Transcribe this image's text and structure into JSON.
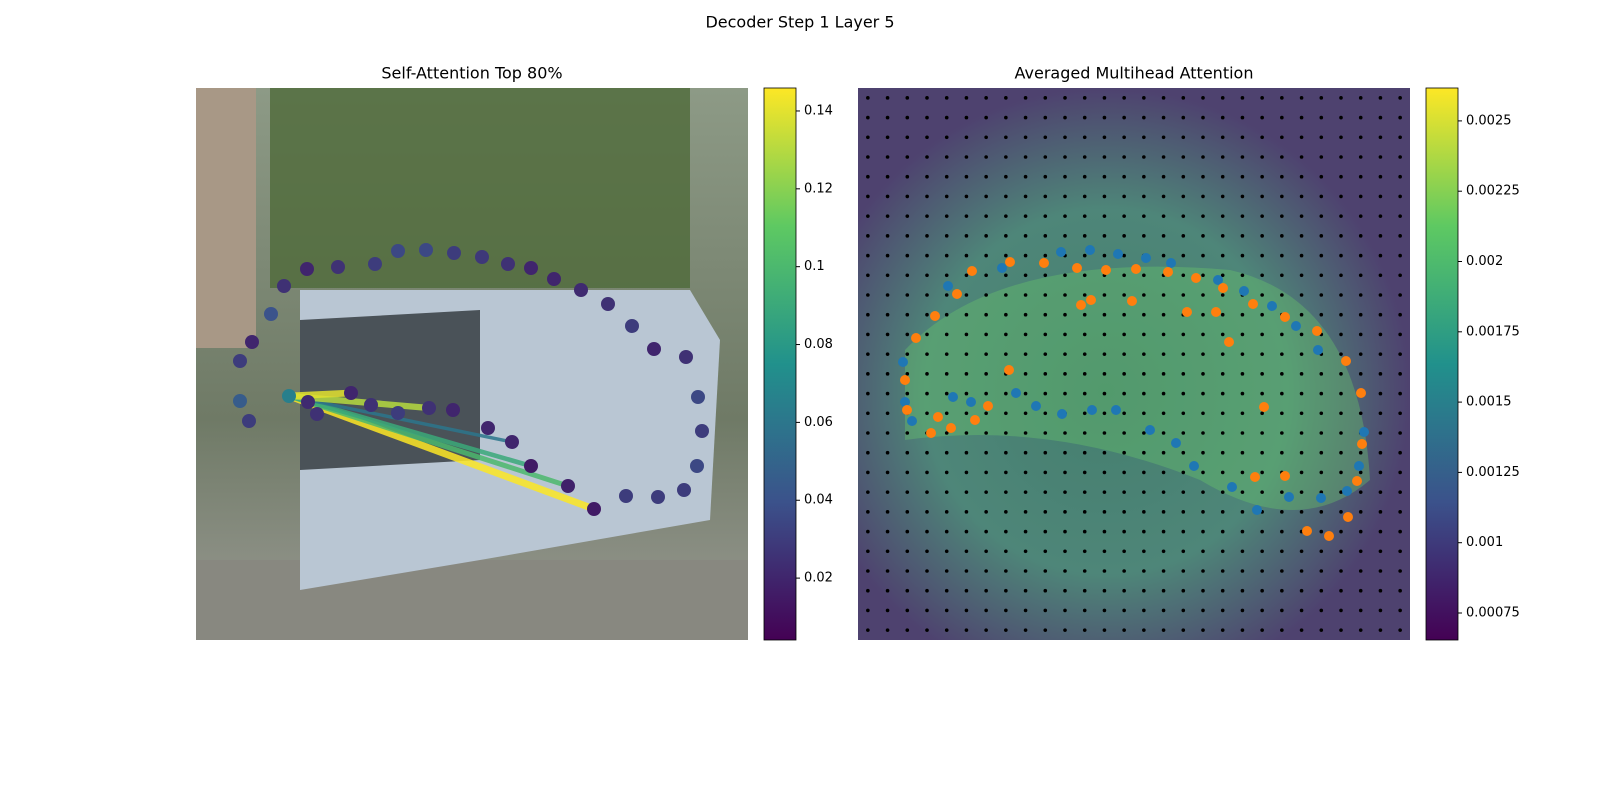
{
  "title": "Decoder Step 1 Layer 5",
  "chart_data": [
    {
      "type": "scatter",
      "title": "Self-Attention Top 80%",
      "colormap": "viridis",
      "xlim": [
        0,
        552
      ],
      "ylim": [
        552,
        0
      ],
      "x": [
        44,
        53,
        44,
        56,
        75,
        88,
        111,
        142,
        179,
        202,
        230,
        258,
        286,
        312,
        335,
        358,
        385,
        412,
        436,
        458,
        490,
        502,
        506,
        501,
        488,
        462,
        430,
        398,
        372,
        335,
        316,
        292,
        257,
        233,
        202,
        175,
        155,
        121,
        112,
        93
      ],
      "y": [
        313,
        333,
        273,
        254,
        226,
        198,
        181,
        179,
        176,
        163,
        162,
        165,
        169,
        176,
        180,
        191,
        202,
        216,
        238,
        261,
        269,
        309,
        343,
        378,
        402,
        409,
        408,
        421,
        398,
        378,
        354,
        340,
        322,
        320,
        325,
        317,
        305,
        326,
        314,
        308
      ],
      "values": [
        0.045,
        0.03,
        0.03,
        0.02,
        0.04,
        0.025,
        0.02,
        0.025,
        0.03,
        0.035,
        0.035,
        0.03,
        0.028,
        0.025,
        0.02,
        0.02,
        0.022,
        0.025,
        0.03,
        0.02,
        0.025,
        0.035,
        0.03,
        0.035,
        0.03,
        0.03,
        0.03,
        0.015,
        0.018,
        0.015,
        0.02,
        0.02,
        0.02,
        0.025,
        0.03,
        0.025,
        0.02,
        0.025,
        0.022,
        0.065
      ],
      "lines": {
        "from": 39,
        "to": [
          27,
          28,
          29,
          30,
          33,
          36
        ],
        "values": [
          0.146,
          0.1,
          0.09,
          0.06,
          0.13,
          0.14
        ]
      },
      "clim": [
        0.0041,
        0.1459
      ],
      "cticks": [
        0.02,
        0.04,
        0.06,
        0.08,
        0.1,
        0.12,
        0.14
      ]
    },
    {
      "type": "scatter",
      "title": "Averaged Multihead Attention",
      "colormap": "viridis",
      "xlim": [
        0,
        552
      ],
      "ylim": [
        552,
        0
      ],
      "series": [
        {
          "color": "#1f77b4",
          "x": [
            45,
            54,
            90,
            95,
            113,
            144,
            158,
            178,
            204,
            203,
            232,
            234,
            258,
            260,
            288,
            292,
            313,
            318,
            336,
            360,
            374,
            386,
            399,
            414,
            431,
            438,
            460,
            463,
            489,
            501,
            506,
            47
          ],
          "y": [
            274,
            333,
            198,
            309,
            314,
            180,
            305,
            318,
            326,
            164,
            162,
            322,
            322,
            166,
            170,
            342,
            175,
            355,
            378,
            192,
            399,
            203,
            422,
            218,
            409,
            238,
            262,
            410,
            403,
            378,
            344,
            314
          ]
        },
        {
          "color": "#ff7f0e",
          "x": [
            47,
            49,
            58,
            77,
            73,
            80,
            93,
            99,
            114,
            117,
            130,
            151,
            152,
            186,
            219,
            223,
            233,
            248,
            274,
            278,
            310,
            329,
            338,
            358,
            365,
            371,
            395,
            406,
            397,
            427,
            427,
            449,
            459,
            471,
            488,
            490,
            499,
            504,
            503
          ],
          "y": [
            292,
            322,
            250,
            228,
            345,
            329,
            340,
            206,
            183,
            332,
            318,
            282,
            174,
            175,
            180,
            217,
            212,
            182,
            213,
            181,
            184,
            224,
            190,
            224,
            200,
            254,
            216,
            319,
            389,
            388,
            229,
            443,
            243,
            448,
            273,
            429,
            393,
            356,
            305
          ]
        }
      ],
      "clim": [
        0.000654,
        0.002617
      ],
      "cticks": [
        0.00075,
        0.001,
        0.00125,
        0.0015,
        0.00175,
        0.002,
        0.00225,
        0.0025
      ]
    }
  ]
}
